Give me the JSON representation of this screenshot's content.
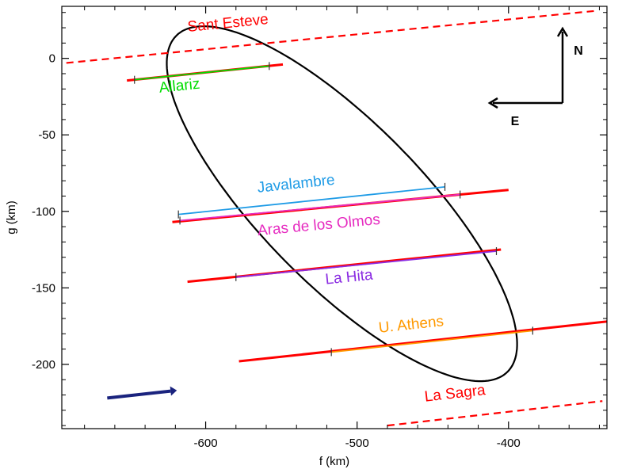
{
  "chart_data": {
    "type": "line",
    "xlabel": "f (km)",
    "ylabel": "g (km)",
    "xlim": [
      -695,
      -335
    ],
    "ylim": [
      -242,
      34
    ],
    "xticks": [
      -600,
      -500,
      -400
    ],
    "yticks": [
      0,
      -50,
      -100,
      -150,
      -200
    ],
    "ellipse": {
      "center": [
        -510,
        -95
      ],
      "semi_major": 155,
      "semi_minor": 53,
      "tilt_deg": -45.1,
      "color": "#000000"
    },
    "chords": [
      {
        "name": "Sant Esteve",
        "style": "dashed",
        "color": "#ff0000",
        "extent": [
          [
            -692,
            -3
          ],
          [
            -343,
            31
          ]
        ],
        "label_at": [
          -585,
          20
        ]
      },
      {
        "name": "Allariz",
        "color": "#00dd00",
        "observed": [
          [
            -647,
            -14
          ],
          [
            -558,
            -5
          ]
        ],
        "uncertainty": [
          [
            -652,
            -14.5
          ],
          [
            -549,
            -4
          ]
        ],
        "label_at": [
          -617,
          -21
        ]
      },
      {
        "name": "Javalambre",
        "color": "#1e9be6",
        "observed": [
          [
            -618,
            -102
          ],
          [
            -442,
            -84
          ]
        ],
        "label_at": [
          -540,
          -85
        ]
      },
      {
        "name": "Aras de los Olmos",
        "color": "#e62bc0",
        "observed": [
          [
            -617,
            -106
          ],
          [
            -432,
            -89
          ]
        ],
        "uncertainty": [
          [
            -622,
            -107
          ],
          [
            -400,
            -86
          ]
        ],
        "label_at": [
          -525,
          -112
        ]
      },
      {
        "name": "La Hita",
        "color": "#8a2be2",
        "observed": [
          [
            -580,
            -143
          ],
          [
            -408,
            -126
          ]
        ],
        "uncertainty": [
          [
            -612,
            -146
          ],
          [
            -405,
            -125
          ]
        ],
        "label_at": [
          -505,
          -146
        ]
      },
      {
        "name": "U. Athens",
        "color": "#ff9900",
        "observed": [
          [
            -517,
            -192
          ],
          [
            -384,
            -178
          ]
        ],
        "uncertainty": [
          [
            -578,
            -198
          ],
          [
            -335,
            -172
          ]
        ],
        "label_at": [
          -464,
          -177
        ]
      },
      {
        "name": "La Sagra",
        "style": "dashed",
        "color": "#ff0000",
        "extent": [
          [
            -480,
            -240
          ],
          [
            -338,
            -224
          ]
        ],
        "label_at": [
          -435,
          -222
        ]
      }
    ],
    "compass": {
      "north_label": "N",
      "east_label": "E"
    },
    "motion_arrow": {
      "from": [
        -665,
        -222
      ],
      "to": [
        -619,
        -217
      ],
      "color": "#1a237e"
    }
  }
}
